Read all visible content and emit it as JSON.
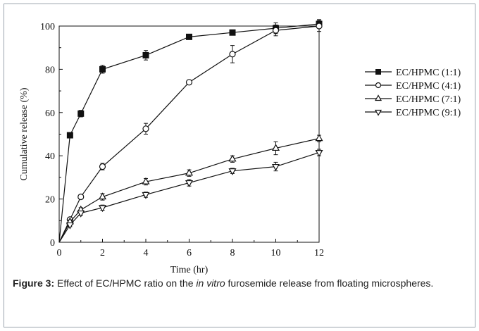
{
  "chart_data": {
    "type": "line",
    "xlabel": "Time (hr)",
    "ylabel": "Cumulative release (%)",
    "xlim": [
      0,
      12
    ],
    "ylim": [
      0,
      100
    ],
    "xticks": [
      0,
      2,
      4,
      6,
      8,
      10,
      12
    ],
    "yticks": [
      0,
      20,
      40,
      60,
      80,
      100
    ],
    "x": [
      0,
      0.5,
      1,
      2,
      4,
      6,
      8,
      10,
      12
    ],
    "legend_position": "right",
    "grid": false,
    "series": [
      {
        "name": "EC/HPMC (1:1)",
        "marker": "filled-square",
        "values": [
          0,
          49.5,
          59.5,
          80,
          86.5,
          95,
          97,
          99,
          101
        ],
        "error": [
          0,
          1.2,
          1.5,
          1.8,
          2.2,
          0.8,
          0.8,
          2.5,
          2.0
        ]
      },
      {
        "name": "EC/HPMC (4:1)",
        "marker": "open-circle",
        "values": [
          0,
          10.5,
          21,
          35,
          52.5,
          74,
          87,
          98,
          100
        ],
        "error": [
          0,
          0.8,
          1.0,
          1.5,
          2.5,
          1.0,
          4.0,
          2.5,
          2.5
        ]
      },
      {
        "name": "EC/HPMC (7:1)",
        "marker": "open-triangle-up",
        "values": [
          0,
          9.5,
          15,
          21,
          28,
          32,
          38.5,
          43.5,
          48
        ],
        "error": [
          0,
          0.8,
          1.0,
          1.5,
          1.5,
          1.5,
          1.5,
          3.0,
          1.5
        ]
      },
      {
        "name": "EC/HPMC (9:1)",
        "marker": "open-triangle-down",
        "values": [
          0,
          8,
          13.5,
          16,
          22,
          27.5,
          33,
          35,
          41.5
        ],
        "error": [
          0,
          0.8,
          1.0,
          1.2,
          1.2,
          1.5,
          1.2,
          2.0,
          1.5
        ]
      }
    ]
  },
  "caption": {
    "label": "Figure 3:",
    "text_before": " Effect of EC/HPMC ratio on the ",
    "italic": "in vitro",
    "text_after": " furosemide release from floating microspheres."
  }
}
